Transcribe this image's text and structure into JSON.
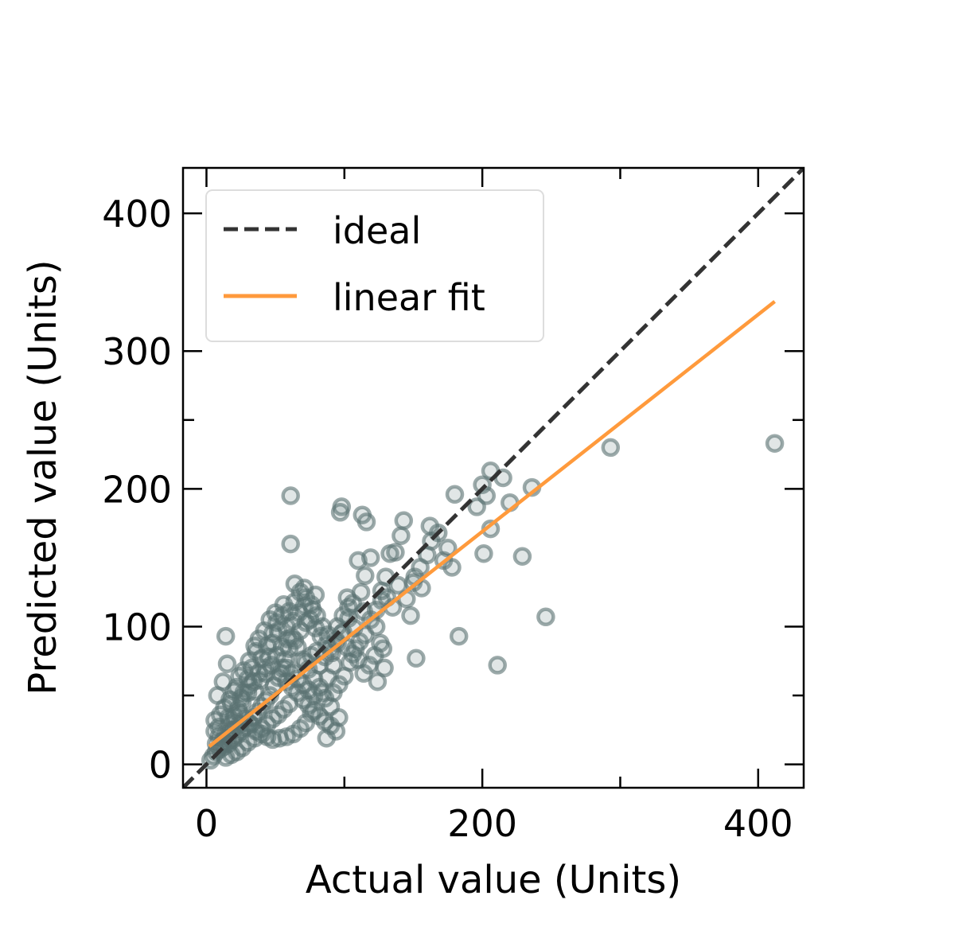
{
  "chart_data": {
    "type": "scatter",
    "xlabel": "Actual value (Units)",
    "ylabel": "Predicted value (Units)",
    "xlim": [
      -17,
      433
    ],
    "ylim": [
      -17,
      433
    ],
    "xticks": [
      0,
      200,
      400
    ],
    "yticks": [
      0,
      100,
      200,
      300,
      400
    ],
    "minor_ticks": [
      100,
      300
    ],
    "legend_position": "top-left",
    "grid": false,
    "colors": {
      "points": "#5a7272",
      "ideal": "#333333",
      "fit": "#ff9a3c"
    },
    "series": [
      {
        "name": "ideal",
        "kind": "line",
        "style": "dashed",
        "x": [
          -17,
          433
        ],
        "y": [
          -17,
          433
        ]
      },
      {
        "name": "linear fit",
        "kind": "line",
        "style": "solid",
        "x": [
          2,
          412
        ],
        "y": [
          13,
          336
        ]
      },
      {
        "kind": "scatter",
        "points": [
          [
            412,
            233
          ],
          [
            293,
            230
          ],
          [
            246,
            107
          ],
          [
            229,
            151
          ],
          [
            236,
            201
          ],
          [
            211,
            72
          ],
          [
            220,
            190
          ],
          [
            215,
            208
          ],
          [
            206,
            213
          ],
          [
            200,
            203
          ],
          [
            203,
            195
          ],
          [
            196,
            187
          ],
          [
            206,
            171
          ],
          [
            201,
            153
          ],
          [
            183,
            93
          ],
          [
            180,
            196
          ],
          [
            178,
            143
          ],
          [
            175,
            157
          ],
          [
            172,
            148
          ],
          [
            168,
            168
          ],
          [
            162,
            173
          ],
          [
            163,
            162
          ],
          [
            160,
            152
          ],
          [
            155,
            143
          ],
          [
            151,
            136
          ],
          [
            148,
            108
          ],
          [
            152,
            77
          ],
          [
            143,
            177
          ],
          [
            141,
            166
          ],
          [
            137,
            154
          ],
          [
            133,
            153
          ],
          [
            130,
            136
          ],
          [
            127,
            119
          ],
          [
            123,
            100
          ],
          [
            128,
            84
          ],
          [
            124,
            60
          ],
          [
            129,
            70
          ],
          [
            119,
            150
          ],
          [
            113,
            181
          ],
          [
            116,
            176
          ],
          [
            110,
            148
          ],
          [
            115,
            137
          ],
          [
            112,
            125
          ],
          [
            106,
            117
          ],
          [
            102,
            121
          ],
          [
            98,
            187
          ],
          [
            97,
            183
          ],
          [
            103,
            106
          ],
          [
            99,
            96
          ],
          [
            95,
            88
          ],
          [
            92,
            72
          ],
          [
            88,
            63
          ],
          [
            84,
            52
          ],
          [
            96,
            34
          ],
          [
            87,
            19
          ],
          [
            61,
            195
          ],
          [
            61,
            160
          ],
          [
            64,
            131
          ],
          [
            71,
            128
          ],
          [
            79,
            123
          ],
          [
            77,
            112
          ],
          [
            72,
            103
          ],
          [
            68,
            97
          ],
          [
            64,
            90
          ],
          [
            60,
            84
          ],
          [
            57,
            76
          ],
          [
            55,
            70
          ],
          [
            52,
            63
          ],
          [
            49,
            57
          ],
          [
            46,
            50
          ],
          [
            43,
            46
          ],
          [
            40,
            42
          ],
          [
            37,
            38
          ],
          [
            34,
            34
          ],
          [
            31,
            30
          ],
          [
            28,
            27
          ],
          [
            25,
            24
          ],
          [
            22,
            21
          ],
          [
            19,
            18
          ],
          [
            16,
            15
          ],
          [
            13,
            13
          ],
          [
            10,
            11
          ],
          [
            7,
            9
          ],
          [
            5,
            6
          ],
          [
            3,
            3
          ],
          [
            9,
            27
          ],
          [
            6,
            32
          ],
          [
            8,
            50
          ],
          [
            12,
            60
          ],
          [
            15,
            73
          ],
          [
            14,
            93
          ],
          [
            22,
            56
          ],
          [
            18,
            44
          ],
          [
            25,
            48
          ],
          [
            30,
            62
          ],
          [
            33,
            70
          ],
          [
            36,
            82
          ],
          [
            40,
            77
          ],
          [
            44,
            86
          ],
          [
            48,
            95
          ],
          [
            51,
            103
          ],
          [
            55,
            108
          ],
          [
            58,
            100
          ],
          [
            62,
            92
          ],
          [
            66,
            85
          ],
          [
            70,
            76
          ],
          [
            74,
            69
          ],
          [
            78,
            62
          ],
          [
            82,
            56
          ],
          [
            86,
            48
          ],
          [
            90,
            42
          ],
          [
            76,
            37
          ],
          [
            72,
            30
          ],
          [
            68,
            26
          ],
          [
            63,
            22
          ],
          [
            58,
            20
          ],
          [
            53,
            19
          ],
          [
            48,
            18
          ],
          [
            44,
            20
          ],
          [
            40,
            22
          ],
          [
            35,
            19
          ],
          [
            30,
            16
          ],
          [
            26,
            12
          ],
          [
            22,
            9
          ],
          [
            18,
            7
          ],
          [
            14,
            5
          ],
          [
            11,
            14
          ],
          [
            14,
            22
          ],
          [
            17,
            29
          ],
          [
            20,
            35
          ],
          [
            23,
            40
          ],
          [
            27,
            52
          ],
          [
            31,
            57
          ],
          [
            35,
            53
          ],
          [
            39,
            61
          ],
          [
            43,
            66
          ],
          [
            47,
            72
          ],
          [
            51,
            79
          ],
          [
            55,
            85
          ],
          [
            59,
            91
          ],
          [
            63,
            104
          ],
          [
            67,
            110
          ],
          [
            71,
            115
          ],
          [
            75,
            105
          ],
          [
            79,
            99
          ],
          [
            83,
            93
          ],
          [
            87,
            87
          ],
          [
            91,
            81
          ],
          [
            95,
            100
          ],
          [
            99,
            108
          ],
          [
            103,
            114
          ],
          [
            107,
            99
          ],
          [
            111,
            89
          ],
          [
            115,
            94
          ],
          [
            119,
            105
          ],
          [
            123,
            112
          ],
          [
            127,
            126
          ],
          [
            131,
            121
          ],
          [
            135,
            114
          ],
          [
            139,
            130
          ],
          [
            145,
            120
          ],
          [
            150,
            132
          ],
          [
            156,
            128
          ],
          [
            114,
            111
          ],
          [
            108,
            84
          ],
          [
            104,
            74
          ],
          [
            100,
            64
          ],
          [
            96,
            58
          ],
          [
            92,
            52
          ],
          [
            88,
            94
          ],
          [
            84,
            100
          ],
          [
            80,
            108
          ],
          [
            76,
            116
          ],
          [
            72,
            121
          ],
          [
            68,
            125
          ],
          [
            64,
            118
          ],
          [
            60,
            111
          ],
          [
            56,
            116
          ],
          [
            52,
            97
          ],
          [
            48,
            88
          ],
          [
            45,
            78
          ],
          [
            42,
            70
          ],
          [
            38,
            66
          ],
          [
            34,
            60
          ],
          [
            30,
            52
          ],
          [
            26,
            45
          ],
          [
            24,
            37
          ],
          [
            21,
            31
          ],
          [
            18,
            25
          ],
          [
            15,
            19
          ],
          [
            12,
            17
          ],
          [
            9,
            20
          ],
          [
            7,
            15
          ],
          [
            6,
            24
          ],
          [
            10,
            36
          ],
          [
            13,
            41
          ],
          [
            17,
            47
          ],
          [
            20,
            53
          ],
          [
            24,
            64
          ],
          [
            27,
            68
          ],
          [
            31,
            75
          ],
          [
            35,
            86
          ],
          [
            38,
            91
          ],
          [
            42,
            97
          ],
          [
            46,
            105
          ],
          [
            50,
            110
          ],
          [
            54,
            66
          ],
          [
            58,
            60
          ],
          [
            62,
            56
          ],
          [
            66,
            52
          ],
          [
            70,
            47
          ],
          [
            74,
            43
          ],
          [
            78,
            39
          ],
          [
            82,
            35
          ],
          [
            86,
            31
          ],
          [
            90,
            28
          ],
          [
            94,
            24
          ],
          [
            60,
            44
          ],
          [
            56,
            40
          ],
          [
            52,
            36
          ],
          [
            48,
            33
          ],
          [
            44,
            29
          ],
          [
            40,
            26
          ],
          [
            36,
            24
          ],
          [
            32,
            29
          ],
          [
            28,
            33
          ],
          [
            24,
            29
          ],
          [
            20,
            25
          ],
          [
            16,
            34
          ],
          [
            58,
            70
          ],
          [
            62,
            66
          ],
          [
            66,
            62
          ],
          [
            70,
            58
          ],
          [
            74,
            54
          ],
          [
            78,
            50
          ],
          [
            82,
            72
          ],
          [
            86,
            78
          ],
          [
            90,
            84
          ],
          [
            94,
            90
          ],
          [
            98,
            95
          ],
          [
            102,
            85
          ],
          [
            106,
            80
          ],
          [
            110,
            76
          ],
          [
            114,
            66
          ],
          [
            118,
            72
          ],
          [
            122,
            79
          ],
          [
            126,
            88
          ],
          [
            80,
            82
          ],
          [
            76,
            79
          ],
          [
            72,
            74
          ]
        ]
      }
    ]
  }
}
